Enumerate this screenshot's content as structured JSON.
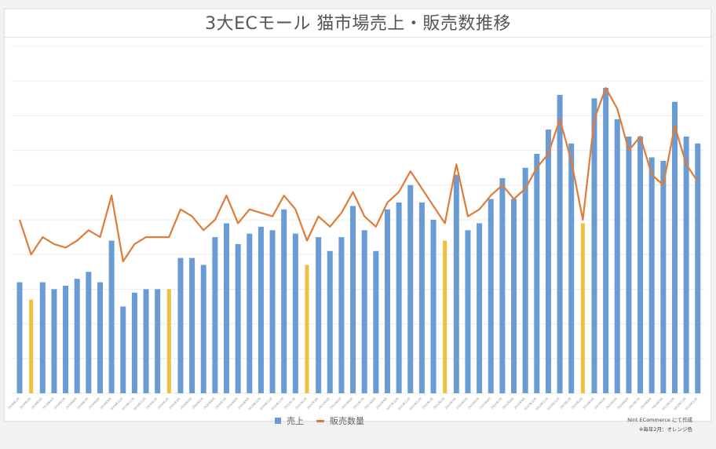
{
  "title": "3大ECモール 猫市場売上・販売数推移",
  "legend": {
    "bar_label": "売上",
    "line_label": "販売数量"
  },
  "notes": {
    "source": "Nint ECommerce にて作成",
    "highlight": "※毎年2月：オレンジ色"
  },
  "colors": {
    "bar": "#6a9bd4",
    "bar_highlight": "#f0bf3e",
    "line": "#e07b39",
    "grid": "#ececec"
  },
  "chart_data": {
    "type": "bar",
    "title": "3大ECモール 猫市場売上・販売数推移",
    "xlabel": "",
    "ylabel": "",
    "y_axis_ticks_visible": false,
    "ylim": [
      0,
      10
    ],
    "grid": true,
    "legend_position": "bottom",
    "unit_note": "Values are relative, measured in gridline units (10 gridlines, no axis numbers shown)",
    "categories": [
      "2019年1月",
      "2019年2月",
      "2019年3月",
      "2019年4月",
      "2019年5月",
      "2019年6月",
      "2019年7月",
      "2019年8月",
      "2019年9月",
      "2019年10月",
      "2019年11月",
      "2019年12月",
      "2020年1月",
      "2020年2月",
      "2020年3月",
      "2020年4月",
      "2020年5月",
      "2020年6月",
      "2020年7月",
      "2020年8月",
      "2020年9月",
      "2020年10月",
      "2020年11月",
      "2020年12月",
      "2021年1月",
      "2021年2月",
      "2021年3月",
      "2021年4月",
      "2021年5月",
      "2021年6月",
      "2021年7月",
      "2021年8月",
      "2021年9月",
      "2021年10月",
      "2021年11月",
      "2021年12月",
      "2022年1月",
      "2022年2月",
      "2022年3月",
      "2022年4月",
      "2022年5月",
      "2022年6月",
      "2022年7月",
      "2022年8月",
      "2022年9月",
      "2022年10月",
      "2022年11月",
      "2022年12月",
      "2023年1月",
      "2023年2月",
      "2023年3月",
      "2023年4月",
      "2023年5月",
      "2023年6月",
      "2023年7月",
      "2023年8月",
      "2023年9月",
      "2023年10月",
      "2023年11月",
      "2023年12月"
    ],
    "highlighted_indices": [
      1,
      13,
      25,
      37,
      49
    ],
    "series": [
      {
        "name": "売上",
        "type": "bar",
        "values": [
          3.2,
          2.7,
          3.2,
          3.0,
          3.1,
          3.3,
          3.5,
          3.2,
          4.4,
          2.5,
          2.9,
          3.0,
          3.0,
          3.0,
          3.9,
          3.9,
          3.7,
          4.5,
          4.9,
          4.3,
          4.6,
          4.8,
          4.7,
          5.3,
          4.6,
          3.7,
          4.5,
          4.1,
          4.5,
          5.4,
          4.7,
          4.1,
          5.3,
          5.5,
          6.0,
          5.5,
          5.0,
          4.4,
          6.3,
          4.7,
          4.9,
          5.6,
          6.2,
          5.6,
          6.5,
          6.9,
          7.6,
          8.6,
          7.2,
          4.9,
          8.5,
          8.8,
          7.9,
          7.4,
          7.4,
          6.8,
          6.7,
          8.4,
          7.4,
          7.2
        ]
      },
      {
        "name": "販売数量",
        "type": "line",
        "values": [
          5.0,
          4.0,
          4.5,
          4.3,
          4.2,
          4.4,
          4.7,
          4.5,
          5.7,
          3.8,
          4.3,
          4.5,
          4.5,
          4.5,
          5.3,
          5.1,
          4.7,
          5.0,
          5.7,
          4.9,
          5.3,
          5.2,
          5.1,
          5.7,
          5.3,
          4.4,
          5.1,
          4.8,
          5.2,
          5.8,
          5.1,
          4.8,
          5.5,
          5.8,
          6.4,
          5.9,
          5.4,
          4.9,
          6.6,
          5.1,
          5.3,
          5.7,
          6.0,
          5.6,
          5.9,
          6.5,
          6.9,
          7.9,
          6.7,
          5.0,
          7.9,
          8.8,
          8.2,
          7.0,
          7.4,
          6.3,
          6.0,
          7.7,
          6.6,
          6.1
        ]
      }
    ]
  }
}
